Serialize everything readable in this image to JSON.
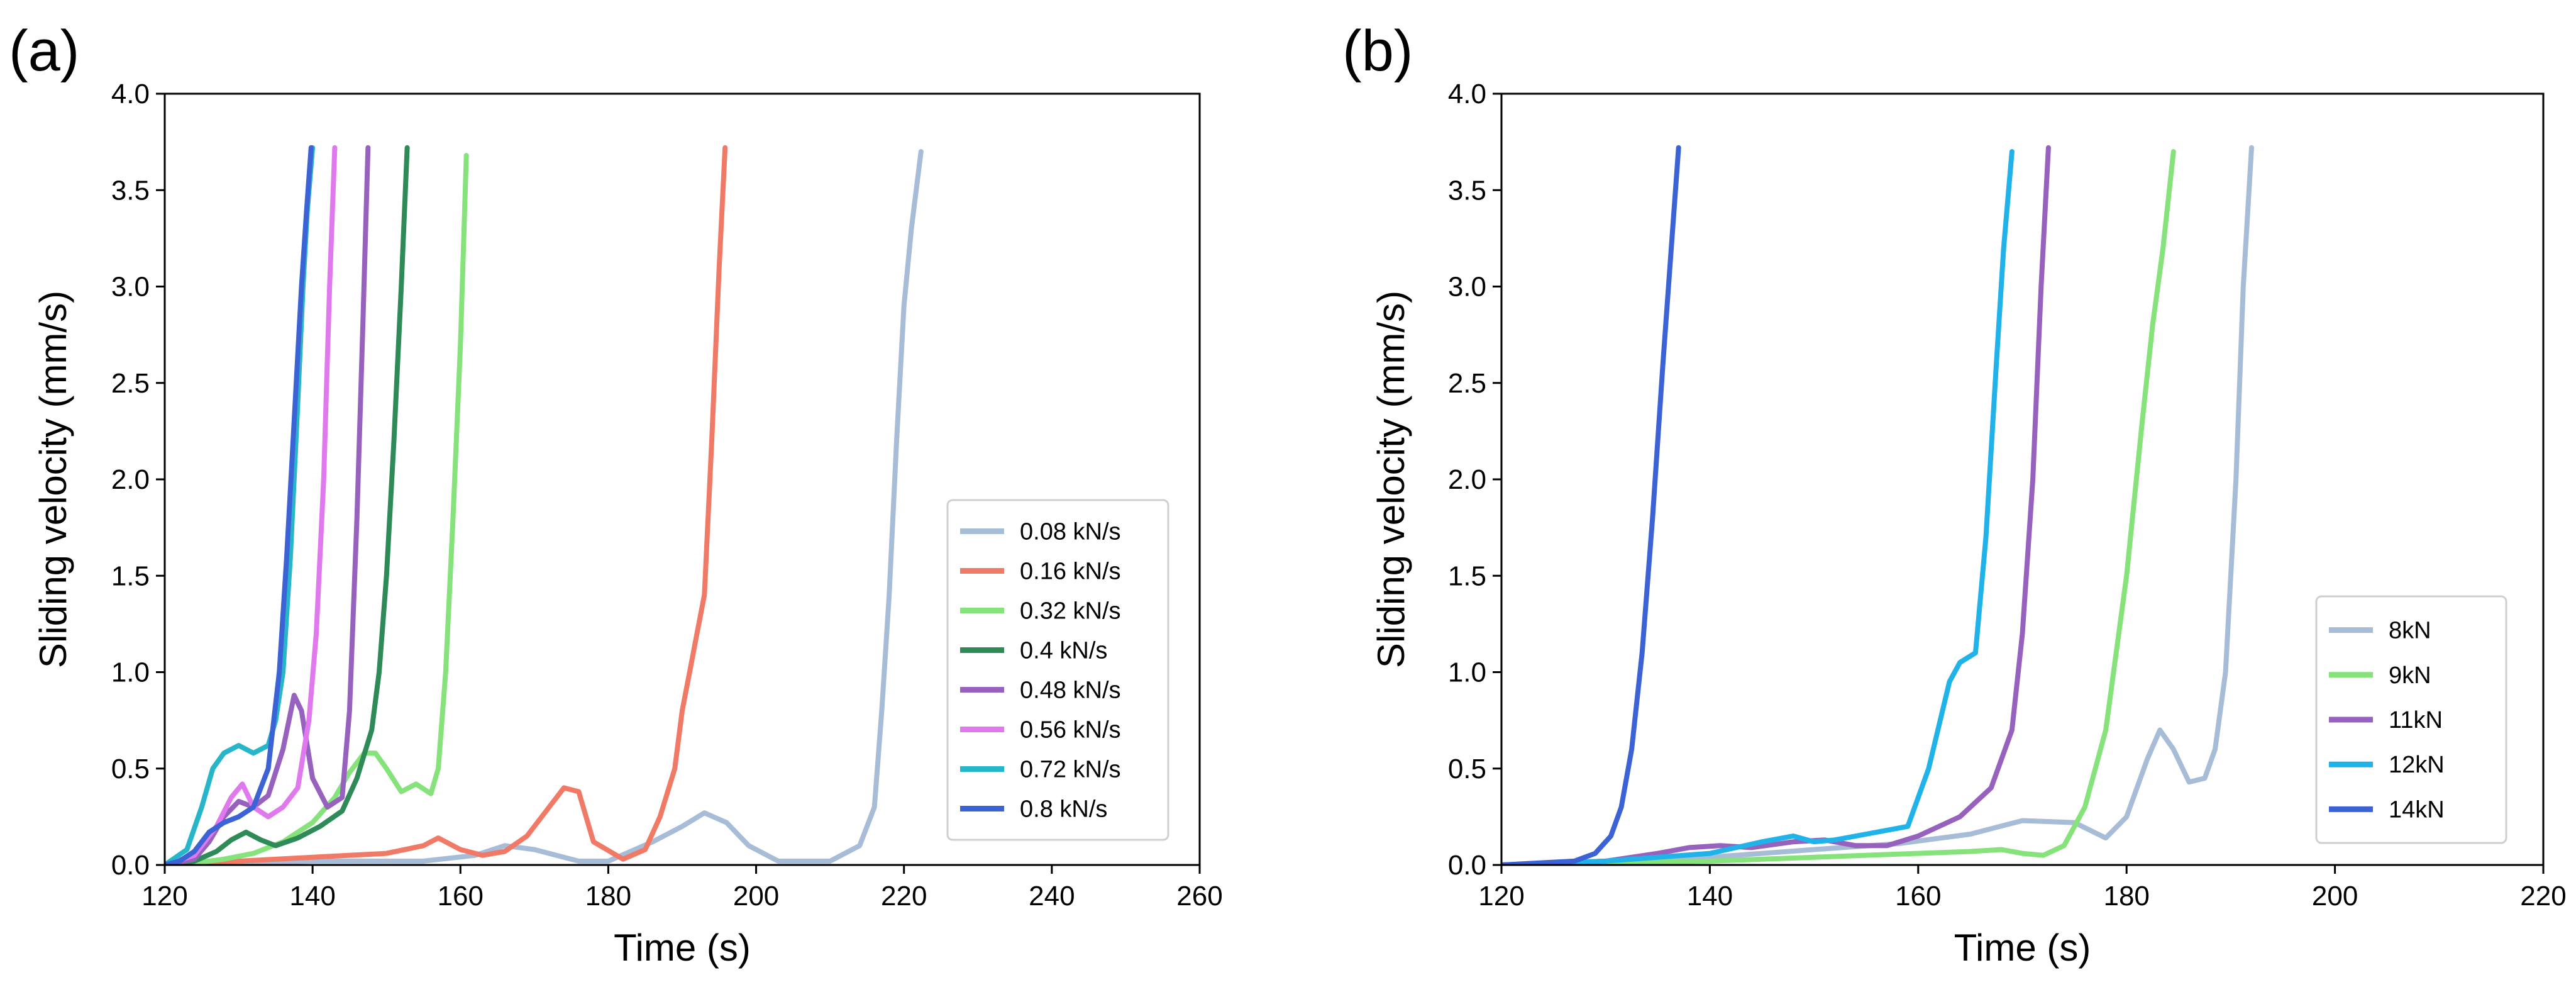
{
  "chart_data": [
    {
      "type": "line",
      "panel_label": "(a)",
      "title": "",
      "xlabel": "Time (s)",
      "ylabel": "Sliding velocity (mm/s)",
      "xlim": [
        120,
        260
      ],
      "ylim": [
        0,
        4.0
      ],
      "xticks": [
        "120",
        "140",
        "160",
        "180",
        "200",
        "220",
        "240",
        "260"
      ],
      "yticks": [
        "0.0",
        "0.5",
        "1.0",
        "1.5",
        "2.0",
        "2.5",
        "3.0",
        "3.5",
        "4.0"
      ],
      "legend_position": "lower-right",
      "series": [
        {
          "name": "0.08 kN/s",
          "color": "#a7bcd6",
          "x": [
            120,
            140,
            155,
            162,
            166,
            170,
            176,
            180,
            186,
            190,
            193,
            196,
            199,
            203,
            210,
            214,
            216,
            217,
            218,
            219,
            220,
            221,
            222.3
          ],
          "y": [
            0,
            0.02,
            0.02,
            0.05,
            0.1,
            0.08,
            0.02,
            0.02,
            0.12,
            0.2,
            0.27,
            0.22,
            0.1,
            0.02,
            0.02,
            0.1,
            0.3,
            0.8,
            1.4,
            2.2,
            2.9,
            3.3,
            3.7
          ]
        },
        {
          "name": "0.16 kN/s",
          "color": "#f07a66",
          "x": [
            120,
            130,
            140,
            150,
            155,
            157,
            160,
            163,
            166,
            169,
            172,
            174,
            176,
            178,
            182,
            185,
            187,
            189,
            190,
            191,
            192,
            193,
            194,
            195,
            195.8
          ],
          "y": [
            0,
            0.02,
            0.04,
            0.06,
            0.1,
            0.14,
            0.08,
            0.05,
            0.07,
            0.15,
            0.3,
            0.4,
            0.38,
            0.12,
            0.03,
            0.08,
            0.25,
            0.5,
            0.8,
            1.0,
            1.2,
            1.4,
            2.2,
            3.1,
            3.72
          ]
        },
        {
          "name": "0.32 kN/s",
          "color": "#86e27a",
          "x": [
            120,
            124,
            128,
            132,
            136,
            140,
            143,
            145,
            147,
            148.5,
            150,
            152,
            154,
            156,
            157,
            158,
            159,
            160,
            160.8
          ],
          "y": [
            0,
            0.01,
            0.03,
            0.06,
            0.12,
            0.22,
            0.35,
            0.48,
            0.58,
            0.58,
            0.5,
            0.38,
            0.42,
            0.37,
            0.5,
            1.0,
            1.8,
            2.7,
            3.68
          ]
        },
        {
          "name": "0.4 kN/s",
          "color": "#2e8b57",
          "x": [
            120,
            124,
            127,
            129,
            131,
            133,
            135,
            138,
            141,
            144,
            146,
            148,
            149,
            150,
            151,
            152,
            152.8
          ],
          "y": [
            0,
            0.02,
            0.07,
            0.13,
            0.17,
            0.13,
            0.1,
            0.14,
            0.2,
            0.28,
            0.45,
            0.7,
            1.0,
            1.5,
            2.2,
            3.0,
            3.72
          ]
        },
        {
          "name": "0.48 kN/s",
          "color": "#9762bd",
          "x": [
            120,
            124,
            126,
            128,
            130,
            132,
            134,
            136,
            137.5,
            138.5,
            140,
            142,
            144,
            145,
            146,
            146.8,
            147.5
          ],
          "y": [
            0,
            0.03,
            0.12,
            0.25,
            0.33,
            0.3,
            0.36,
            0.6,
            0.88,
            0.8,
            0.45,
            0.3,
            0.35,
            0.8,
            1.8,
            2.8,
            3.72
          ]
        },
        {
          "name": "0.56 kN/s",
          "color": "#e179ee",
          "x": [
            120,
            124,
            127,
            129,
            130.5,
            132,
            134,
            136,
            138,
            139.5,
            140.5,
            141.5,
            142.3,
            143
          ],
          "y": [
            0,
            0.05,
            0.2,
            0.35,
            0.42,
            0.3,
            0.25,
            0.3,
            0.4,
            0.75,
            1.2,
            2.0,
            3.0,
            3.72
          ]
        },
        {
          "name": "0.72 kN/s",
          "color": "#27b6c9",
          "x": [
            120,
            123,
            125,
            126.5,
            128,
            130,
            132,
            134,
            135,
            136,
            137,
            138,
            138.7,
            139.3,
            140
          ],
          "y": [
            0,
            0.08,
            0.3,
            0.5,
            0.58,
            0.62,
            0.58,
            0.62,
            0.75,
            1.0,
            1.6,
            2.4,
            3.0,
            3.4,
            3.72
          ]
        },
        {
          "name": "0.8 kN/s",
          "color": "#3c63d6",
          "x": [
            120,
            122,
            124,
            126,
            128,
            130,
            132,
            134,
            135.5,
            136.5,
            137.5,
            138.5,
            139.2,
            139.8
          ],
          "y": [
            0,
            0.02,
            0.07,
            0.17,
            0.22,
            0.25,
            0.3,
            0.5,
            1.0,
            1.6,
            2.3,
            3.0,
            3.4,
            3.72
          ]
        }
      ]
    },
    {
      "type": "line",
      "panel_label": "(b)",
      "title": "",
      "xlabel": "Time (s)",
      "ylabel": "Sliding velocity (mm/s)",
      "xlim": [
        120,
        220
      ],
      "ylim": [
        0,
        4.0
      ],
      "xticks": [
        "120",
        "140",
        "160",
        "180",
        "200",
        "220"
      ],
      "yticks": [
        "0.0",
        "0.5",
        "1.0",
        "1.5",
        "2.0",
        "2.5",
        "3.0",
        "3.5",
        "4.0"
      ],
      "legend_position": "lower-right",
      "series": [
        {
          "name": "8kN",
          "color": "#a7bcd6",
          "x": [
            120,
            140,
            150,
            158,
            165,
            170,
            175,
            178,
            180,
            182,
            183.2,
            184.5,
            186,
            187.5,
            188.5,
            189.5,
            190.5,
            191.2,
            192
          ],
          "y": [
            0,
            0.04,
            0.08,
            0.11,
            0.16,
            0.23,
            0.22,
            0.14,
            0.25,
            0.55,
            0.7,
            0.6,
            0.43,
            0.45,
            0.6,
            1.0,
            2.0,
            3.0,
            3.72
          ]
        },
        {
          "name": "9kN",
          "color": "#86e27a",
          "x": [
            120,
            140,
            150,
            160,
            165,
            168,
            170,
            172,
            174,
            176,
            178,
            180,
            181.5,
            182.5,
            183.5,
            184.5
          ],
          "y": [
            0,
            0.02,
            0.04,
            0.06,
            0.07,
            0.08,
            0.06,
            0.05,
            0.1,
            0.3,
            0.7,
            1.5,
            2.3,
            2.8,
            3.2,
            3.7
          ]
        },
        {
          "name": "11kN",
          "color": "#9762bd",
          "x": [
            120,
            130,
            135,
            138,
            141,
            144,
            148,
            151,
            154,
            157,
            160,
            164,
            167,
            169,
            170,
            171,
            171.8,
            172.5
          ],
          "y": [
            0,
            0.02,
            0.06,
            0.09,
            0.1,
            0.09,
            0.12,
            0.13,
            0.1,
            0.1,
            0.15,
            0.25,
            0.4,
            0.7,
            1.2,
            2.0,
            3.0,
            3.72
          ]
        },
        {
          "name": "12kN",
          "color": "#1fb3ea",
          "x": [
            120,
            130,
            135,
            140,
            145,
            148,
            150,
            152,
            155,
            159,
            161,
            163,
            164,
            165.5,
            166.5,
            167.5,
            168.2,
            169
          ],
          "y": [
            0,
            0.02,
            0.04,
            0.06,
            0.12,
            0.15,
            0.12,
            0.13,
            0.16,
            0.2,
            0.5,
            0.95,
            1.05,
            1.1,
            1.7,
            2.6,
            3.2,
            3.7
          ]
        },
        {
          "name": "14kN",
          "color": "#3c63d6",
          "x": [
            120,
            127,
            129,
            130.5,
            131.5,
            132.5,
            133.5,
            134.5,
            135.5,
            136.3,
            137
          ],
          "y": [
            0,
            0.02,
            0.06,
            0.15,
            0.3,
            0.6,
            1.1,
            1.8,
            2.6,
            3.2,
            3.72
          ]
        }
      ]
    }
  ]
}
